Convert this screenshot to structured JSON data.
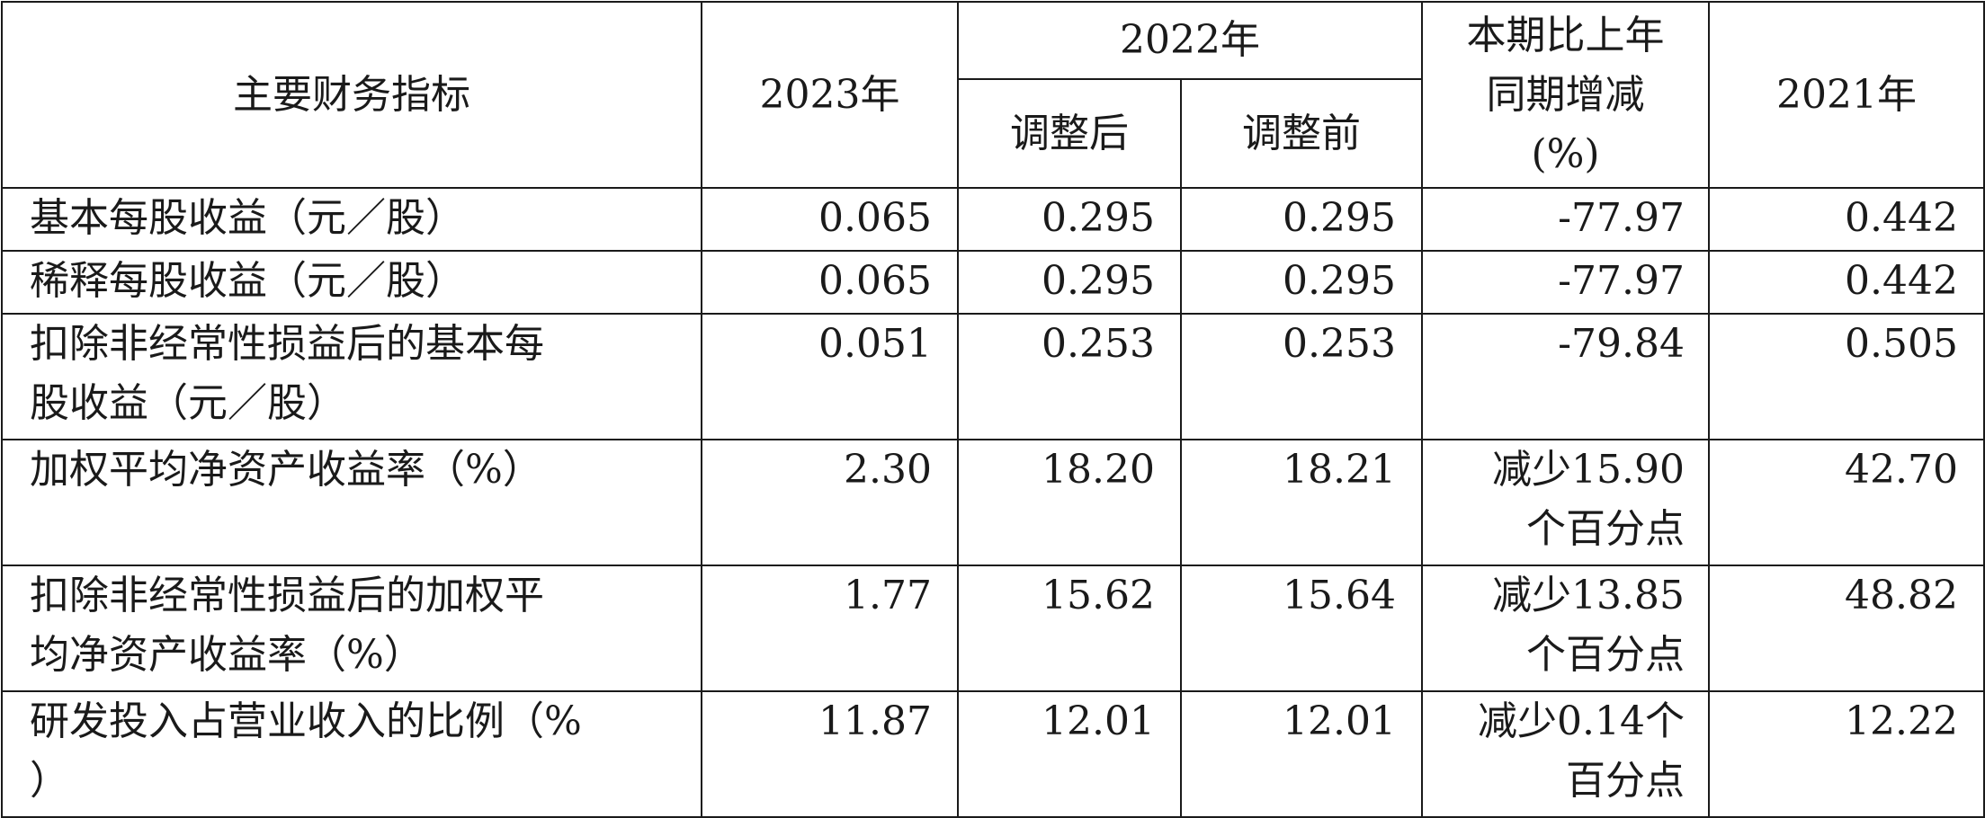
{
  "headers": {
    "indicator": "主要财务指标",
    "year_2023": "2023年",
    "year_2022": "2022年",
    "adjusted_after": "调整后",
    "adjusted_before": "调整前",
    "change_line1": "本期比上年",
    "change_line2": "同期增减",
    "change_line3": "(%)",
    "year_2021": "2021年"
  },
  "rows": [
    {
      "label_lines": [
        "基本每股收益（元／股）"
      ],
      "v2023": "0.065",
      "v2022_after": "0.295",
      "v2022_before": "0.295",
      "change_lines": [
        "-77.97"
      ],
      "v2021": "0.442"
    },
    {
      "label_lines": [
        "稀释每股收益（元／股）"
      ],
      "v2023": "0.065",
      "v2022_after": "0.295",
      "v2022_before": "0.295",
      "change_lines": [
        "-77.97"
      ],
      "v2021": "0.442"
    },
    {
      "label_lines": [
        "扣除非经常性损益后的基本每",
        "股收益（元／股）"
      ],
      "v2023": "0.051",
      "v2022_after": "0.253",
      "v2022_before": "0.253",
      "change_lines": [
        "-79.84"
      ],
      "v2021": "0.505"
    },
    {
      "label_lines": [
        "加权平均净资产收益率（%）"
      ],
      "v2023": "2.30",
      "v2022_after": "18.20",
      "v2022_before": "18.21",
      "change_lines": [
        "减少15.90",
        "个百分点"
      ],
      "v2021": "42.70"
    },
    {
      "label_lines": [
        "扣除非经常性损益后的加权平",
        "均净资产收益率（%）"
      ],
      "v2023": "1.77",
      "v2022_after": "15.62",
      "v2022_before": "15.64",
      "change_lines": [
        "减少13.85",
        "个百分点"
      ],
      "v2021": "48.82"
    },
    {
      "label_lines": [
        "研发投入占营业收入的比例（%",
        "）"
      ],
      "v2023": "11.87",
      "v2022_after": "12.01",
      "v2022_before": "12.01",
      "change_lines": [
        "减少0.14个",
        "百分点"
      ],
      "v2021": "12.22"
    }
  ]
}
